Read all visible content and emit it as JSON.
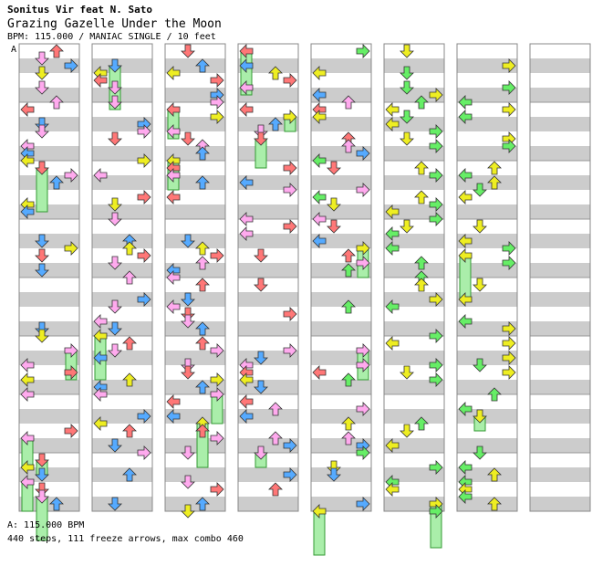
{
  "header": {
    "artist": "Sonitus Vir feat N. Sato",
    "title": "Grazing Gazelle Under the Moon",
    "info": "BPM: 115.000 / MANIAC SINGLE / 10 feet"
  },
  "chart_marker": "A",
  "footer": {
    "bpm": "A: 115.000 BPM",
    "stats": "440 steps, 111 freeze arrows, max combo 460"
  },
  "colors": {
    "stripe": "#cccccc",
    "border": "#888888",
    "red": "#ff7777",
    "blue": "#55aaff",
    "pink": "#ffaaee",
    "yellow": "#eeee22",
    "green": "#66ee66",
    "freeze": "#aaeeaa"
  }
}
